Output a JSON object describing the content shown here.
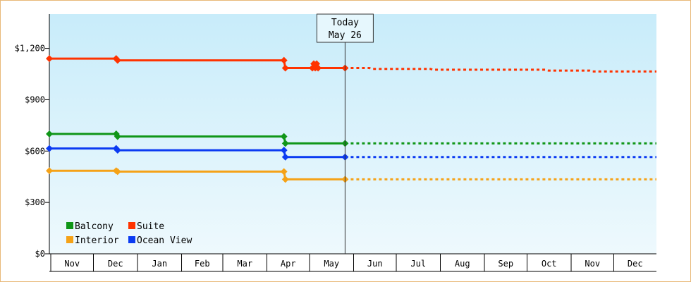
{
  "chart_data": {
    "type": "line",
    "title": "",
    "xlabel": "",
    "ylabel": "",
    "ylim": [
      0,
      1400
    ],
    "y_ticks": [
      0,
      300,
      600,
      900,
      1200
    ],
    "y_tick_labels": [
      "$0",
      "$300",
      "$600",
      "$900",
      "$1,200"
    ],
    "x_range": [
      "2015-10-31",
      "2016-12-31"
    ],
    "x_months": [
      {
        "label": "Nov",
        "start": "2015-11-01"
      },
      {
        "label": "Dec",
        "start": "2015-12-01"
      },
      {
        "label": "Jan",
        "start": "2016-01-01"
      },
      {
        "label": "Feb",
        "start": "2016-02-01"
      },
      {
        "label": "Mar",
        "start": "2016-03-01"
      },
      {
        "label": "Apr",
        "start": "2016-04-01"
      },
      {
        "label": "May",
        "start": "2016-05-01"
      },
      {
        "label": "Jun",
        "start": "2016-06-01"
      },
      {
        "label": "Jul",
        "start": "2016-07-01"
      },
      {
        "label": "Aug",
        "start": "2016-08-01"
      },
      {
        "label": "Sep",
        "start": "2016-09-01"
      },
      {
        "label": "Oct",
        "start": "2016-10-01"
      },
      {
        "label": "Nov",
        "start": "2016-11-01"
      },
      {
        "label": "Dec",
        "start": "2016-12-01"
      }
    ],
    "today": {
      "line1": "Today",
      "line2": "May 26",
      "date": "2016-05-26"
    },
    "background_gradient": [
      "#c8ecfa",
      "#eef9fd"
    ],
    "legend_position": "bottom-left",
    "series": [
      {
        "name": "Suite",
        "color": "#ff3300",
        "points": [
          {
            "x": "2015-10-31",
            "y": 1140
          },
          {
            "x": "2015-12-17",
            "y": 1140
          },
          {
            "x": "2015-12-18",
            "y": 1130
          },
          {
            "x": "2016-04-13",
            "y": 1130
          },
          {
            "x": "2016-04-14",
            "y": 1085
          },
          {
            "x": "2016-05-03",
            "y": 1085
          },
          {
            "x": "2016-05-04",
            "y": 1110
          },
          {
            "x": "2016-05-05",
            "y": 1085
          },
          {
            "x": "2016-05-06",
            "y": 1110
          },
          {
            "x": "2016-05-07",
            "y": 1085
          },
          {
            "x": "2016-05-26",
            "y": 1085
          }
        ],
        "forecast": [
          {
            "x": "2016-05-26",
            "y": 1085
          },
          {
            "x": "2016-06-12",
            "y": 1085
          },
          {
            "x": "2016-06-14",
            "y": 1080
          },
          {
            "x": "2016-07-25",
            "y": 1080
          },
          {
            "x": "2016-07-27",
            "y": 1075
          },
          {
            "x": "2016-10-14",
            "y": 1075
          },
          {
            "x": "2016-10-16",
            "y": 1070
          },
          {
            "x": "2016-11-14",
            "y": 1070
          },
          {
            "x": "2016-11-16",
            "y": 1065
          },
          {
            "x": "2016-12-31",
            "y": 1065
          }
        ]
      },
      {
        "name": "Balcony",
        "color": "#109618",
        "points": [
          {
            "x": "2015-10-31",
            "y": 700
          },
          {
            "x": "2015-12-17",
            "y": 700
          },
          {
            "x": "2015-12-18",
            "y": 685
          },
          {
            "x": "2016-04-13",
            "y": 685
          },
          {
            "x": "2016-04-14",
            "y": 645
          },
          {
            "x": "2016-05-26",
            "y": 645
          }
        ],
        "forecast": [
          {
            "x": "2016-05-26",
            "y": 645
          },
          {
            "x": "2016-12-31",
            "y": 645
          }
        ]
      },
      {
        "name": "Ocean View",
        "color": "#0b3bf2",
        "points": [
          {
            "x": "2015-10-31",
            "y": 615
          },
          {
            "x": "2015-12-17",
            "y": 615
          },
          {
            "x": "2015-12-18",
            "y": 605
          },
          {
            "x": "2016-04-13",
            "y": 605
          },
          {
            "x": "2016-04-14",
            "y": 565
          },
          {
            "x": "2016-05-26",
            "y": 565
          }
        ],
        "forecast": [
          {
            "x": "2016-05-26",
            "y": 565
          },
          {
            "x": "2016-12-31",
            "y": 565
          }
        ]
      },
      {
        "name": "Interior",
        "color": "#f5a217",
        "points": [
          {
            "x": "2015-10-31",
            "y": 485
          },
          {
            "x": "2015-12-17",
            "y": 485
          },
          {
            "x": "2015-12-18",
            "y": 480
          },
          {
            "x": "2016-04-13",
            "y": 480
          },
          {
            "x": "2016-04-14",
            "y": 435
          },
          {
            "x": "2016-05-26",
            "y": 435
          }
        ],
        "forecast": [
          {
            "x": "2016-05-26",
            "y": 435
          },
          {
            "x": "2016-12-31",
            "y": 435
          }
        ]
      }
    ],
    "legend": [
      {
        "name": "Balcony",
        "color": "#109618"
      },
      {
        "name": "Suite",
        "color": "#ff3300"
      },
      {
        "name": "Interior",
        "color": "#f5a217"
      },
      {
        "name": "Ocean View",
        "color": "#0b3bf2"
      }
    ]
  }
}
